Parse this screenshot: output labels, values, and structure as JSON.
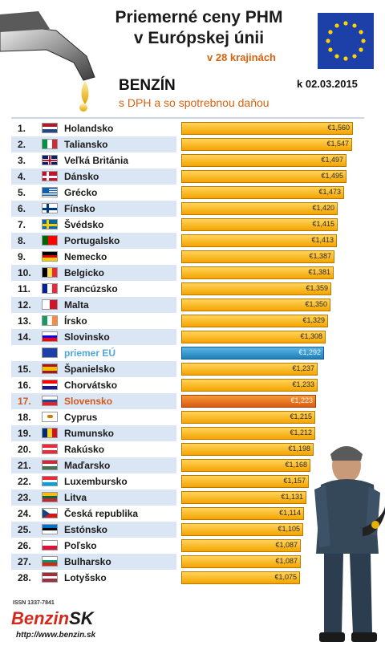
{
  "header": {
    "title_line1": "Priemerné ceny PHM",
    "title_line2": "v Európskej únii",
    "subtitle": "v 28 krajinách",
    "fuel": "BENZÍN",
    "date": "k 02.03.2015",
    "tax_note": "s DPH a so spotrebnou daňou"
  },
  "footer": {
    "issn": "ISSN 1337-7841",
    "brand_part1": "Benzin",
    "brand_part2": "SK",
    "url": "http://www.benzin.sk"
  },
  "colors": {
    "bar": "#f5a400",
    "eu_bar": "#1f7fb8",
    "sk_bar": "#d95b10",
    "accent_text": "#d9630f"
  },
  "chart_data": {
    "type": "bar",
    "orientation": "horizontal",
    "unit": "€",
    "xlim": [
      0,
      1.6
    ],
    "rows": [
      {
        "rank": "1.",
        "country": "Holandsko",
        "value": 1.56,
        "label": "€1,560",
        "flag": "nl"
      },
      {
        "rank": "2.",
        "country": "Taliansko",
        "value": 1.547,
        "label": "€1,547",
        "flag": "it"
      },
      {
        "rank": "3.",
        "country": "Veľká Británia",
        "value": 1.497,
        "label": "€1,497",
        "flag": "gb"
      },
      {
        "rank": "4.",
        "country": "Dánsko",
        "value": 1.495,
        "label": "€1,495",
        "flag": "dk"
      },
      {
        "rank": "5.",
        "country": "Grécko",
        "value": 1.473,
        "label": "€1,473",
        "flag": "gr"
      },
      {
        "rank": "6.",
        "country": "Fínsko",
        "value": 1.42,
        "label": "€1,420",
        "flag": "fi"
      },
      {
        "rank": "7.",
        "country": "Švédsko",
        "value": 1.415,
        "label": "€1,415",
        "flag": "se"
      },
      {
        "rank": "8.",
        "country": "Portugalsko",
        "value": 1.413,
        "label": "€1,413",
        "flag": "pt"
      },
      {
        "rank": "9.",
        "country": "Nemecko",
        "value": 1.387,
        "label": "€1,387",
        "flag": "de"
      },
      {
        "rank": "10.",
        "country": "Belgicko",
        "value": 1.381,
        "label": "€1,381",
        "flag": "be"
      },
      {
        "rank": "11.",
        "country": "Francúzsko",
        "value": 1.359,
        "label": "€1,359",
        "flag": "fr"
      },
      {
        "rank": "12.",
        "country": "Malta",
        "value": 1.35,
        "label": "€1,350",
        "flag": "mt"
      },
      {
        "rank": "13.",
        "country": "Írsko",
        "value": 1.329,
        "label": "€1,329",
        "flag": "ie"
      },
      {
        "rank": "14.",
        "country": "Slovinsko",
        "value": 1.308,
        "label": "€1,308",
        "flag": "si"
      },
      {
        "rank": "",
        "country": "priemer EÚ",
        "value": 1.292,
        "label": "€1,292",
        "flag": "eu",
        "kind": "eu"
      },
      {
        "rank": "15.",
        "country": "Španielsko",
        "value": 1.237,
        "label": "€1,237",
        "flag": "es"
      },
      {
        "rank": "16.",
        "country": "Chorvátsko",
        "value": 1.233,
        "label": "€1,233",
        "flag": "hr"
      },
      {
        "rank": "17.",
        "country": "Slovensko",
        "value": 1.223,
        "label": "€1,223",
        "flag": "sk",
        "kind": "sk"
      },
      {
        "rank": "18.",
        "country": "Cyprus",
        "value": 1.215,
        "label": "€1,215",
        "flag": "cy"
      },
      {
        "rank": "19.",
        "country": "Rumunsko",
        "value": 1.212,
        "label": "€1,212",
        "flag": "ro"
      },
      {
        "rank": "20.",
        "country": "Rakúsko",
        "value": 1.198,
        "label": "€1,198",
        "flag": "at"
      },
      {
        "rank": "21.",
        "country": "Maďarsko",
        "value": 1.168,
        "label": "€1,168",
        "flag": "hu"
      },
      {
        "rank": "22.",
        "country": "Luxembursko",
        "value": 1.157,
        "label": "€1,157",
        "flag": "lu"
      },
      {
        "rank": "23.",
        "country": "Litva",
        "value": 1.131,
        "label": "€1,131",
        "flag": "lt"
      },
      {
        "rank": "24.",
        "country": "Česká republika",
        "value": 1.114,
        "label": "€1,114",
        "flag": "cz"
      },
      {
        "rank": "25.",
        "country": "Estónsko",
        "value": 1.105,
        "label": "€1,105",
        "flag": "ee"
      },
      {
        "rank": "26.",
        "country": "Poľsko",
        "value": 1.087,
        "label": "€1,087",
        "flag": "pl"
      },
      {
        "rank": "27.",
        "country": "Bulharsko",
        "value": 1.087,
        "label": "€1,087",
        "flag": "bg"
      },
      {
        "rank": "28.",
        "country": "Lotyšsko",
        "value": 1.075,
        "label": "€1,075",
        "flag": "lv"
      }
    ]
  }
}
